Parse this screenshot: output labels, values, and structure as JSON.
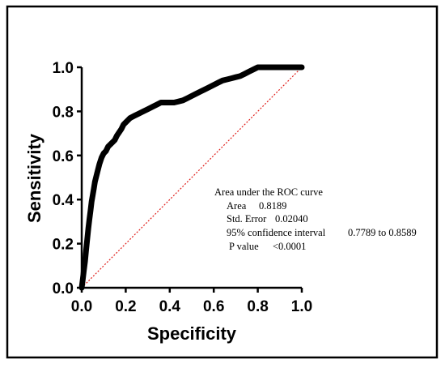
{
  "chart_data": {
    "type": "line",
    "title": "",
    "xlabel": "Specificity",
    "ylabel": "Sensitivity",
    "xlim": [
      0,
      1
    ],
    "ylim": [
      0,
      1
    ],
    "xticks": [
      "0.0",
      "0.2",
      "0.4",
      "0.6",
      "0.8",
      "1.0"
    ],
    "yticks": [
      "0.0",
      "0.2",
      "0.4",
      "0.6",
      "0.8",
      "1.0"
    ],
    "grid": false,
    "series": [
      {
        "style": "solid-thick",
        "color": "#000000",
        "x": [
          0.0,
          0.005,
          0.01,
          0.015,
          0.02,
          0.025,
          0.03,
          0.035,
          0.04,
          0.045,
          0.05,
          0.055,
          0.06,
          0.07,
          0.08,
          0.09,
          0.1,
          0.11,
          0.12,
          0.14,
          0.15,
          0.16,
          0.18,
          0.19,
          0.2,
          0.21,
          0.22,
          0.24,
          0.26,
          0.28,
          0.3,
          0.32,
          0.34,
          0.36,
          0.38,
          0.4,
          0.42,
          0.44,
          0.46,
          0.48,
          0.5,
          0.52,
          0.54,
          0.56,
          0.58,
          0.6,
          0.62,
          0.64,
          0.66,
          0.68,
          0.7,
          0.72,
          0.74,
          0.76,
          0.78,
          0.8,
          0.85,
          0.9,
          0.95,
          1.0
        ],
        "y": [
          0.0,
          0.04,
          0.08,
          0.12,
          0.17,
          0.22,
          0.27,
          0.31,
          0.35,
          0.39,
          0.42,
          0.45,
          0.48,
          0.52,
          0.56,
          0.59,
          0.61,
          0.62,
          0.64,
          0.66,
          0.67,
          0.69,
          0.72,
          0.74,
          0.75,
          0.76,
          0.77,
          0.78,
          0.79,
          0.8,
          0.81,
          0.82,
          0.83,
          0.84,
          0.84,
          0.84,
          0.84,
          0.845,
          0.85,
          0.86,
          0.87,
          0.88,
          0.89,
          0.9,
          0.91,
          0.92,
          0.93,
          0.94,
          0.945,
          0.95,
          0.955,
          0.96,
          0.97,
          0.98,
          0.99,
          1.0,
          1.0,
          1.0,
          1.0,
          1.0
        ]
      },
      {
        "style": "dotted",
        "color": "#e0201c",
        "x": [
          0,
          1
        ],
        "y": [
          0,
          1
        ]
      }
    ]
  },
  "stats_box": {
    "heading": "Area under the ROC curve",
    "area_label": "Area",
    "area_value": "0.8189",
    "se_label": "Std. Error",
    "se_value": "0.02040",
    "ci_label": "95% confidence interval",
    "ci_value": "0.7789 to 0.8589",
    "p_label": "P value",
    "p_value": "<0.0001"
  }
}
